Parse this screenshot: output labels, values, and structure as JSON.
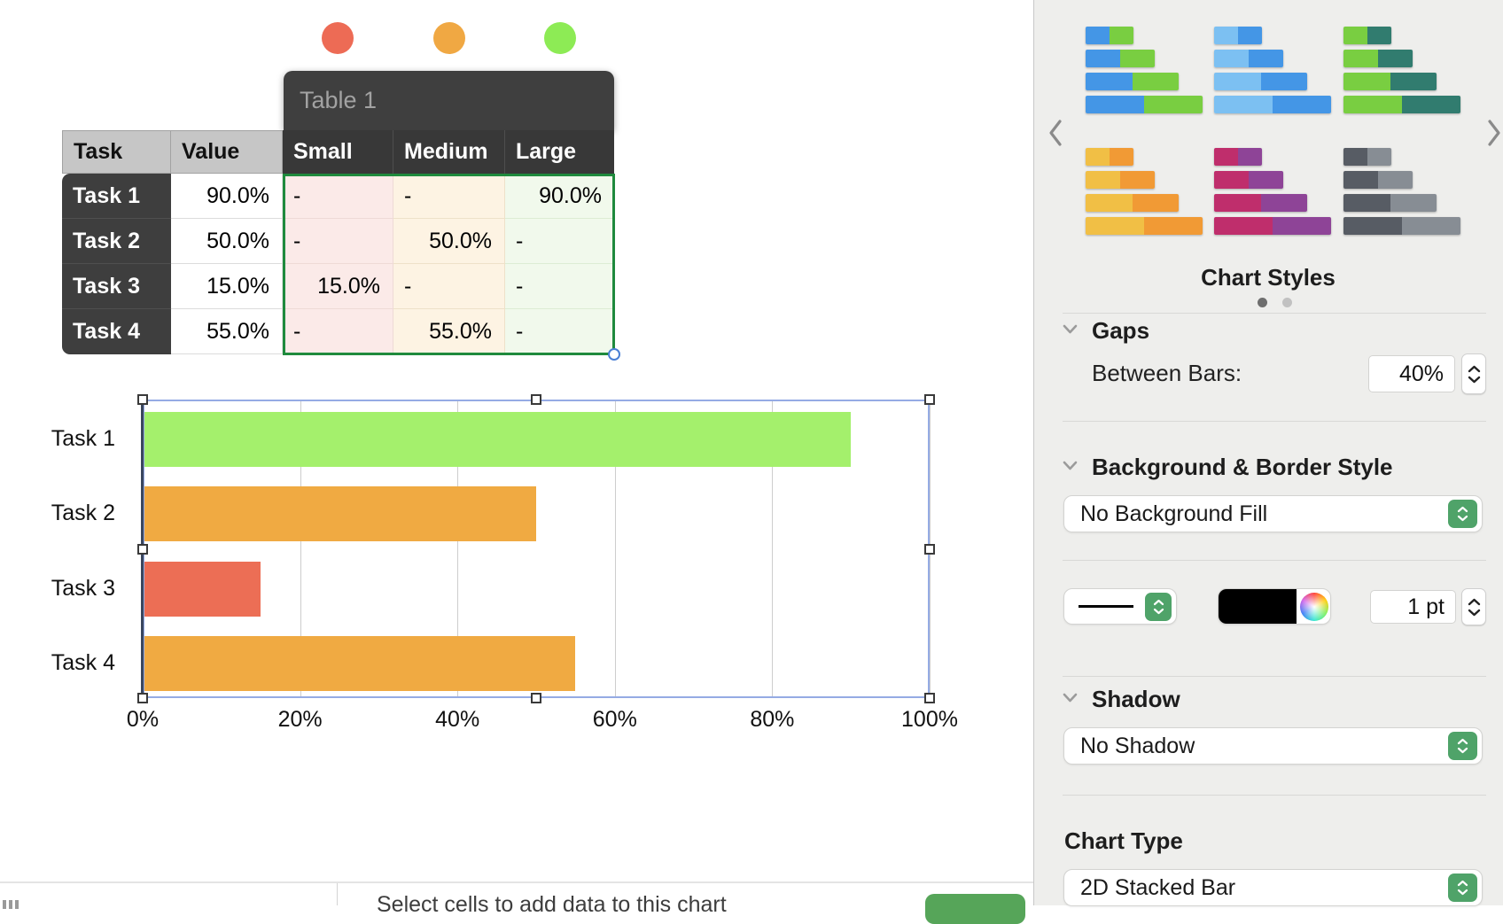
{
  "table": {
    "popup_title": "Table 1",
    "series_dots": [
      {
        "name": "small",
        "color": "#ed6b55"
      },
      {
        "name": "medium",
        "color": "#f0a843"
      },
      {
        "name": "large",
        "color": "#8deb55"
      }
    ],
    "columns": [
      "Task",
      "Value",
      "Small",
      "Medium",
      "Large"
    ],
    "rows": [
      {
        "task": "Task 1",
        "value": "90.0%",
        "small": "-",
        "medium": "-",
        "large": "90.0%"
      },
      {
        "task": "Task 2",
        "value": "50.0%",
        "small": "-",
        "medium": "50.0%",
        "large": "-"
      },
      {
        "task": "Task 3",
        "value": "15.0%",
        "small": "15.0%",
        "medium": "-",
        "large": "-"
      },
      {
        "task": "Task 4",
        "value": "55.0%",
        "small": "-",
        "medium": "55.0%",
        "large": "-"
      }
    ],
    "selection_border_color": "#1f8a3d"
  },
  "chart_data": {
    "type": "bar",
    "orientation": "horizontal",
    "title": "",
    "xlabel": "",
    "ylabel": "",
    "categories": [
      "Task 1",
      "Task 2",
      "Task 3",
      "Task 4"
    ],
    "values": [
      90,
      50,
      15,
      55
    ],
    "bar_colors": [
      "#a4f06c",
      "#f0aa42",
      "#ec6e55",
      "#f0aa42"
    ],
    "xlim": [
      0,
      100
    ],
    "tick_labels": [
      "0%",
      "20%",
      "40%",
      "60%",
      "80%",
      "100%"
    ],
    "grid": true,
    "legend": "none"
  },
  "panel": {
    "style_carousel": {
      "label": "Chart Styles",
      "pages": 2,
      "active_page": 1,
      "dot_active_color": "#6e6e6e",
      "dot_inactive_color": "#c1c1c1",
      "thumbnails": [
        {
          "colors": [
            "#4496e6",
            "#79ce41"
          ]
        },
        {
          "colors": [
            "#7cc0f2",
            "#4496e6"
          ]
        },
        {
          "colors": [
            "#79ce41",
            "#317c6f"
          ]
        },
        {
          "colors": [
            "#f1bf45",
            "#f19a35"
          ]
        },
        {
          "colors": [
            "#bf2e6c",
            "#8e4497"
          ]
        },
        {
          "colors": [
            "#575c64",
            "#878d94"
          ]
        }
      ]
    },
    "gaps": {
      "title": "Gaps",
      "between_bars_label": "Between Bars:",
      "between_bars_value": "40%"
    },
    "background_border": {
      "title": "Background & Border Style",
      "fill_value": "No Background Fill",
      "stroke_color": "#000000",
      "stroke_width_value": "1 pt"
    },
    "shadow": {
      "title": "Shadow",
      "value": "No Shadow"
    },
    "chart_type": {
      "title": "Chart Type",
      "value": "2D Stacked Bar"
    },
    "accent_green": "#4fa369"
  },
  "bottom_bar": {
    "hint": "Select cells to add data to this chart",
    "done_button_color": "#56a559"
  }
}
